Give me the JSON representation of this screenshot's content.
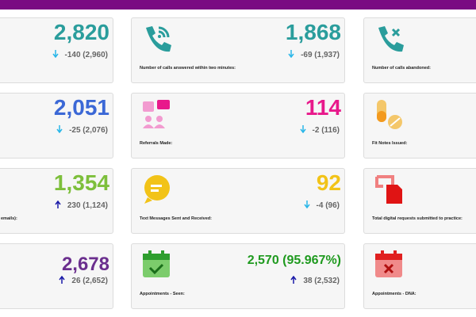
{
  "cards": [
    {
      "value": "2,820",
      "change": "-140 (2,960)",
      "color": "#2a9d9c"
    },
    {
      "value": "1,868",
      "change": "-69 (1,937)",
      "label": "Number of calls answered within two minutes:",
      "color": "#2a9d9c"
    },
    {
      "label": "Number of calls abandoned:"
    },
    {
      "value": "2,051",
      "change": "-25 (2,076)",
      "color": "#3b68d6"
    },
    {
      "value": "114",
      "change": "-2 (116)",
      "label": "Referrals Made:",
      "color": "#e8198b"
    },
    {
      "label": "Fit Notes Issued:"
    },
    {
      "value": "1,354",
      "change": "230 (1,124)",
      "label": "emails):",
      "color": "#7dbf3b"
    },
    {
      "value": "92",
      "change": "-4 (96)",
      "label": "Text Messages Sent and Received:",
      "color": "#f2c318"
    },
    {
      "label": "Total digital requests submitted to practice:"
    },
    {
      "value": "2,678",
      "change": "26 (2,652)",
      "color": "#6b2f8e"
    },
    {
      "value": "2,570 (95.967%)",
      "change": "38 (2,532)",
      "label": "Appointments - Seen:",
      "color": "#1f9a1f"
    },
    {
      "label": "Appointments - DNA:"
    }
  ]
}
